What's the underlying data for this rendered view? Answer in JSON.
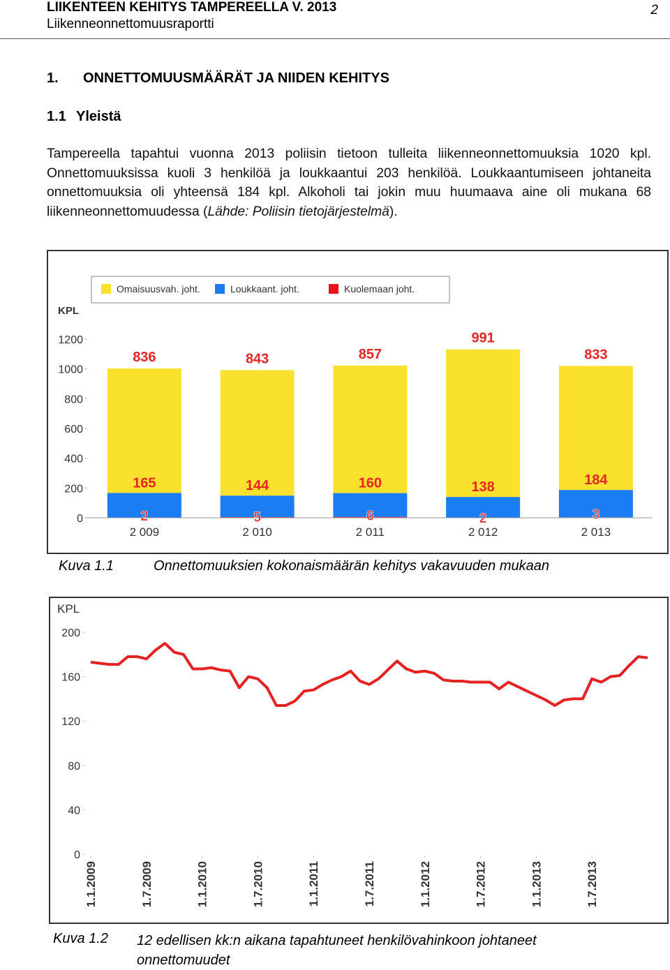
{
  "header": {
    "title": "LIIKENTEEN KEHITYS TAMPEREELLA V. 2013",
    "subtitle": "Liikenneonnettomuusraportti",
    "page": "2"
  },
  "heading": {
    "number": "1.",
    "text": "ONNETTOMUUSMÄÄRÄT JA NIIDEN KEHITYS"
  },
  "subheading": {
    "number": "1.1",
    "text": "Yleistä"
  },
  "paragraph": {
    "text": "Tampereella tapahtui vuonna 2013 poliisin tietoon tulleita liikenneonnettomuuksia 1020 kpl. Onnettomuuksissa kuoli 3 henkilöä ja loukkaantui 203 henkilöä. Loukkaantumiseen johtaneita onnettomuuksia oli yhteensä 184 kpl. Alkoholi tai jokin muu huumaava aine oli mukana 68 liikenneonnettomuudessa (",
    "source": "Lähde: Poliisin tietojärjestelmä",
    "end": ")."
  },
  "captions": [
    {
      "number": "Kuva 1.1",
      "text": "Onnettomuuksien kokonaismäärän kehitys vakavuuden mukaan"
    },
    {
      "number": "Kuva 1.2",
      "text": "12 edellisen kk:n aikana tapahtuneet henkilövahinkoon johtaneet onnettomuudet"
    }
  ],
  "chart_data": [
    {
      "type": "bar",
      "stacked": true,
      "ylabel": "KPL",
      "categories": [
        "2 009",
        "2 010",
        "2 011",
        "2 012",
        "2 013"
      ],
      "series": [
        {
          "name": "Omaisuusvah. joht.",
          "color": "#f9e12e",
          "values": [
            836,
            843,
            857,
            991,
            833
          ]
        },
        {
          "name": "Loukkaant. joht.",
          "color": "#1a7df2",
          "values": [
            165,
            144,
            160,
            138,
            184
          ]
        },
        {
          "name": "Kuolemaan joht.",
          "color": "#e8141a",
          "values": [
            2,
            5,
            6,
            2,
            3
          ]
        }
      ],
      "ylim": [
        0,
        1200
      ],
      "yticks": [
        0,
        200,
        400,
        600,
        800,
        1000,
        1200
      ],
      "legend": "top",
      "grid": false
    },
    {
      "type": "line",
      "ylabel": "KPL",
      "x": [
        "1.1.2009",
        "1.2.2009",
        "1.3.2009",
        "1.4.2009",
        "1.5.2009",
        "1.6.2009",
        "1.7.2009",
        "1.8.2009",
        "1.9.2009",
        "1.10.2009",
        "1.11.2009",
        "1.12.2009",
        "1.1.2010",
        "1.2.2010",
        "1.3.2010",
        "1.4.2010",
        "1.5.2010",
        "1.6.2010",
        "1.7.2010",
        "1.8.2010",
        "1.9.2010",
        "1.10.2010",
        "1.11.2010",
        "1.12.2010",
        "1.1.2011",
        "1.2.2011",
        "1.3.2011",
        "1.4.2011",
        "1.5.2011",
        "1.6.2011",
        "1.7.2011",
        "1.8.2011",
        "1.9.2011",
        "1.10.2011",
        "1.11.2011",
        "1.12.2011",
        "1.1.2012",
        "1.2.2012",
        "1.3.2012",
        "1.4.2012",
        "1.5.2012",
        "1.6.2012",
        "1.7.2012",
        "1.8.2012",
        "1.9.2012",
        "1.10.2012",
        "1.11.2012",
        "1.12.2012",
        "1.1.2013",
        "1.2.2013",
        "1.3.2013",
        "1.4.2013",
        "1.5.2013",
        "1.6.2013",
        "1.7.2013",
        "1.8.2013",
        "1.9.2013",
        "1.10.2013",
        "1.11.2013",
        "1.12.2013",
        "1.1.2014"
      ],
      "series": [
        {
          "color": "#e52222",
          "values": [
            173,
            172,
            171,
            171,
            178,
            178,
            176,
            184,
            190,
            182,
            180,
            167,
            167,
            168,
            166,
            165,
            150,
            160,
            158,
            150,
            134,
            134,
            138,
            147,
            148,
            153,
            157,
            160,
            165,
            156,
            153,
            158,
            166,
            174,
            167,
            164,
            165,
            163,
            157,
            156,
            156,
            155,
            155,
            155,
            149,
            155,
            151,
            147,
            143,
            139,
            134,
            139,
            140,
            140,
            158,
            155,
            160,
            161,
            170,
            178,
            177
          ]
        }
      ],
      "xticks": [
        "1.1.2009",
        "1.7.2009",
        "1.1.2010",
        "1.7.2010",
        "1.1.2011",
        "1.7.2011",
        "1.1.2012",
        "1.7.2012",
        "1.1.2013",
        "1.7.2013"
      ],
      "ylim": [
        0,
        200
      ],
      "yticks": [
        0,
        40,
        80,
        120,
        160,
        200
      ],
      "grid": false
    }
  ]
}
